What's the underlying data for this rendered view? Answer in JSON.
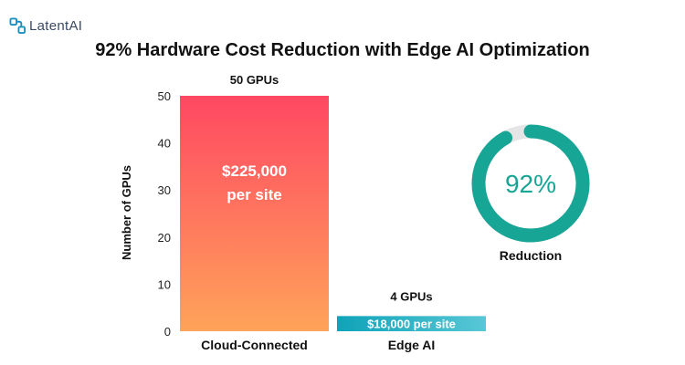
{
  "brand": {
    "name": "LatentAI"
  },
  "colors": {
    "bar_top": "#ff4862",
    "bar_bottom": "#ffa35a",
    "edge_left": "#0fa3b8",
    "edge_right": "#58c7d6",
    "donut_accent": "#17a595",
    "donut_track": "#e5e5e5"
  },
  "chart_data": {
    "type": "bar",
    "title": "92% Hardware Cost Reduction with Edge AI Optimization",
    "ylabel": "Number of GPUs",
    "ylim": [
      0,
      50
    ],
    "yticks": [
      0,
      10,
      20,
      30,
      40,
      50
    ],
    "grid": false,
    "categories": [
      "Cloud-Connected",
      "Edge AI"
    ],
    "values": [
      50,
      4
    ],
    "top_labels": [
      "50 GPUs",
      "4 GPUs"
    ],
    "bar_texts": [
      [
        "$225,000",
        "per site"
      ],
      [
        "$18,000 per site"
      ]
    ],
    "reduction": {
      "value": 92,
      "display": "92%",
      "label": "Reduction"
    }
  }
}
